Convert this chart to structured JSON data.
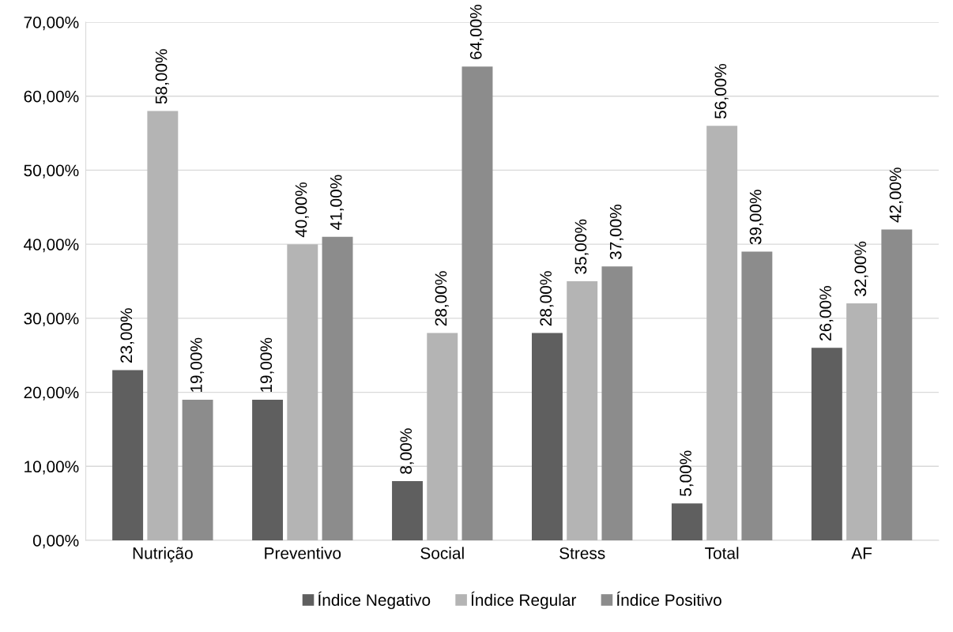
{
  "chart_data": {
    "type": "bar",
    "categories": [
      "Nutrição",
      "Preventivo",
      "Social",
      "Stress",
      "Total",
      "AF"
    ],
    "series": [
      {
        "name": "Índice Negativo",
        "color": "#5f5f5f",
        "values": [
          23,
          19,
          8,
          28,
          5,
          26
        ],
        "value_labels": [
          "23,00%",
          "19,00%",
          "8,00%",
          "28,00%",
          "5,00%",
          "26,00%"
        ]
      },
      {
        "name": "Índice Regular",
        "color": "#b4b4b4",
        "values": [
          58,
          40,
          28,
          35,
          56,
          32
        ],
        "value_labels": [
          "58,00%",
          "40,00%",
          "28,00%",
          "35,00%",
          "56,00%",
          "32,00%"
        ]
      },
      {
        "name": "Índice Positivo",
        "color": "#8c8c8c",
        "values": [
          19,
          41,
          64,
          37,
          39,
          42
        ],
        "value_labels": [
          "19,00%",
          "41,00%",
          "64,00%",
          "37,00%",
          "39,00%",
          "42,00%"
        ]
      }
    ],
    "ylim": [
      0,
      70
    ],
    "yticks": [
      {
        "value": 0,
        "label": "0,00%"
      },
      {
        "value": 10,
        "label": "10,00%"
      },
      {
        "value": 20,
        "label": "20,00%"
      },
      {
        "value": 30,
        "label": "30,00%"
      },
      {
        "value": 40,
        "label": "40,00%"
      },
      {
        "value": 50,
        "label": "50,00%"
      },
      {
        "value": 60,
        "label": "60,00%"
      },
      {
        "value": 70,
        "label": "70,00%"
      }
    ],
    "grid": "y",
    "legend": "bottom"
  }
}
